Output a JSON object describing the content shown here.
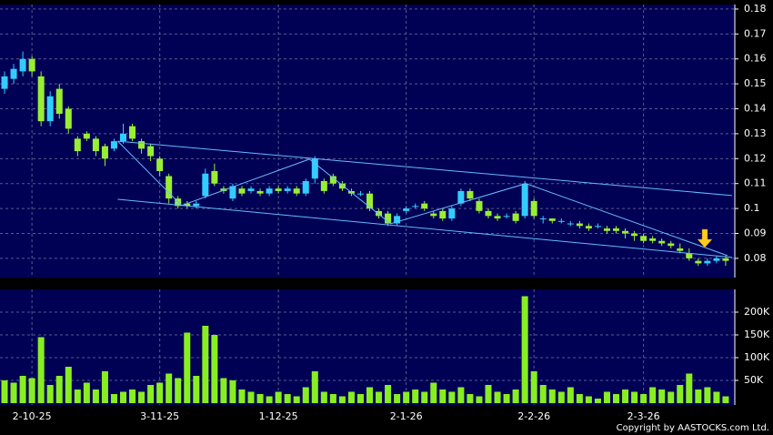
{
  "chart_data": {
    "type": "candlestick",
    "x": [
      0,
      1,
      2,
      3,
      4,
      5,
      6,
      7,
      8,
      9,
      10,
      11,
      12,
      13,
      14,
      15,
      16,
      17,
      18,
      19,
      20,
      21,
      22,
      23,
      24,
      25,
      26,
      27,
      28,
      29,
      30,
      31,
      32,
      33,
      34,
      35,
      36,
      37,
      38,
      39,
      40,
      41,
      42,
      43,
      44,
      45,
      46,
      47,
      48,
      49,
      50,
      51,
      52,
      53,
      54,
      55,
      56,
      57,
      58,
      59,
      60,
      61,
      62,
      63,
      64,
      65,
      66,
      67,
      68,
      69,
      70,
      71,
      72,
      73,
      74,
      75,
      76,
      77,
      78,
      79
    ],
    "xlim": [
      -0.5,
      80
    ],
    "xticks": [
      {
        "value": 3,
        "label": "2-10-25"
      },
      {
        "value": 17,
        "label": "3-11-25"
      },
      {
        "value": 30,
        "label": "1-12-25"
      },
      {
        "value": 44,
        "label": "2-1-26"
      },
      {
        "value": 58,
        "label": "2-2-26"
      },
      {
        "value": 70,
        "label": "2-3-26"
      }
    ],
    "open": [
      0.148,
      0.152,
      0.155,
      0.16,
      0.153,
      0.135,
      0.148,
      0.14,
      0.128,
      0.13,
      0.128,
      0.125,
      0.124,
      0.127,
      0.133,
      0.127,
      0.125,
      0.12,
      0.113,
      0.104,
      0.102,
      0.101,
      0.105,
      0.115,
      0.108,
      0.104,
      0.108,
      0.107,
      0.107,
      0.106,
      0.108,
      0.107,
      0.108,
      0.106,
      0.112,
      0.111,
      0.113,
      0.11,
      0.107,
      0.106,
      0.106,
      0.099,
      0.098,
      0.094,
      0.099,
      0.101,
      0.102,
      0.098,
      0.099,
      0.096,
      0.102,
      0.107,
      0.103,
      0.099,
      0.097,
      0.097,
      0.098,
      0.097,
      0.103,
      0.096,
      0.096,
      0.095,
      0.094,
      0.094,
      0.093,
      0.093,
      0.092,
      0.092,
      0.091,
      0.09,
      0.089,
      0.088,
      0.087,
      0.086,
      0.084,
      0.082,
      0.079,
      0.078,
      0.079,
      0.08
    ],
    "high": [
      0.155,
      0.158,
      0.163,
      0.161,
      0.155,
      0.147,
      0.15,
      0.141,
      0.129,
      0.131,
      0.129,
      0.126,
      0.128,
      0.134,
      0.134,
      0.128,
      0.126,
      0.121,
      0.114,
      0.105,
      0.103,
      0.103,
      0.116,
      0.118,
      0.109,
      0.11,
      0.109,
      0.109,
      0.108,
      0.109,
      0.109,
      0.109,
      0.109,
      0.112,
      0.121,
      0.112,
      0.114,
      0.111,
      0.108,
      0.107,
      0.107,
      0.1,
      0.099,
      0.098,
      0.101,
      0.102,
      0.103,
      0.099,
      0.1,
      0.101,
      0.108,
      0.108,
      0.104,
      0.1,
      0.098,
      0.098,
      0.099,
      0.111,
      0.104,
      0.097,
      0.096,
      0.096,
      0.095,
      0.095,
      0.094,
      0.094,
      0.093,
      0.093,
      0.092,
      0.091,
      0.09,
      0.089,
      0.088,
      0.087,
      0.086,
      0.084,
      0.08,
      0.08,
      0.081,
      0.081
    ],
    "low": [
      0.146,
      0.15,
      0.153,
      0.153,
      0.133,
      0.133,
      0.136,
      0.13,
      0.121,
      0.127,
      0.121,
      0.117,
      0.123,
      0.126,
      0.127,
      0.122,
      0.119,
      0.113,
      0.102,
      0.1,
      0.1,
      0.1,
      0.104,
      0.109,
      0.106,
      0.103,
      0.105,
      0.106,
      0.105,
      0.105,
      0.106,
      0.106,
      0.105,
      0.105,
      0.11,
      0.106,
      0.109,
      0.107,
      0.105,
      0.105,
      0.099,
      0.096,
      0.093,
      0.093,
      0.098,
      0.1,
      0.099,
      0.096,
      0.095,
      0.095,
      0.101,
      0.103,
      0.098,
      0.096,
      0.095,
      0.096,
      0.094,
      0.096,
      0.096,
      0.094,
      0.094,
      0.094,
      0.093,
      0.092,
      0.091,
      0.092,
      0.09,
      0.09,
      0.088,
      0.087,
      0.086,
      0.086,
      0.085,
      0.084,
      0.082,
      0.079,
      0.077,
      0.077,
      0.078,
      0.077
    ],
    "close": [
      0.153,
      0.156,
      0.16,
      0.155,
      0.135,
      0.145,
      0.138,
      0.132,
      0.123,
      0.128,
      0.123,
      0.12,
      0.127,
      0.13,
      0.128,
      0.124,
      0.121,
      0.115,
      0.104,
      0.101,
      0.101,
      0.102,
      0.114,
      0.11,
      0.107,
      0.109,
      0.106,
      0.108,
      0.106,
      0.108,
      0.107,
      0.108,
      0.106,
      0.111,
      0.12,
      0.107,
      0.11,
      0.108,
      0.106,
      0.106,
      0.1,
      0.097,
      0.094,
      0.097,
      0.1,
      0.101,
      0.1,
      0.097,
      0.096,
      0.1,
      0.107,
      0.104,
      0.099,
      0.097,
      0.096,
      0.097,
      0.095,
      0.11,
      0.097,
      0.096,
      0.095,
      0.095,
      0.094,
      0.093,
      0.092,
      0.093,
      0.091,
      0.091,
      0.09,
      0.089,
      0.087,
      0.087,
      0.086,
      0.085,
      0.083,
      0.08,
      0.078,
      0.079,
      0.08,
      0.079
    ],
    "up_color": "#33ccff",
    "down_color": "#99ee33",
    "ylim": [
      0.0723,
      0.1818
    ],
    "yticks": [
      0.08,
      0.09,
      0.1,
      0.11,
      0.12,
      0.13,
      0.14,
      0.15,
      0.16,
      0.17,
      0.18
    ],
    "trendlines": [
      {
        "x": [
          12.4,
          79.7
        ],
        "y": [
          0.127,
          0.1052
        ],
        "color": "#66bbff"
      },
      {
        "x": [
          12.4,
          79.7
        ],
        "y": [
          0.1037,
          0.0804
        ],
        "color": "#66bbff"
      },
      {
        "x": [
          12.4,
          19.4,
          33.4,
          42.3,
          57.1,
          79.2
        ],
        "y": [
          0.127,
          0.1012,
          0.1198,
          0.0939,
          0.11,
          0.0811
        ],
        "color": "#66bbff"
      }
    ],
    "volume": [
      50000,
      45000,
      60000,
      55000,
      145000,
      40000,
      60000,
      80000,
      30000,
      45000,
      30000,
      70000,
      20000,
      25000,
      30000,
      25000,
      40000,
      45000,
      65000,
      55000,
      155000,
      60000,
      170000,
      150000,
      55000,
      50000,
      30000,
      25000,
      20000,
      15000,
      25000,
      20000,
      15000,
      35000,
      70000,
      25000,
      20000,
      15000,
      25000,
      20000,
      35000,
      25000,
      40000,
      20000,
      25000,
      30000,
      25000,
      45000,
      30000,
      25000,
      35000,
      20000,
      15000,
      40000,
      25000,
      20000,
      30000,
      235000,
      70000,
      40000,
      30000,
      25000,
      35000,
      20000,
      15000,
      10000,
      25000,
      20000,
      30000,
      25000,
      20000,
      35000,
      30000,
      25000,
      40000,
      65000,
      30000,
      35000,
      25000,
      15000
    ],
    "volume_color": "#88ee22",
    "volume_ylim": [
      -4000,
      250000
    ],
    "volume_yticks": [
      {
        "value": 50000,
        "label": "50K"
      },
      {
        "value": 100000,
        "label": "100K"
      },
      {
        "value": 150000,
        "label": "150K"
      },
      {
        "value": 200000,
        "label": "200K"
      }
    ],
    "grid": true,
    "copyright": "Copyright by AASTOCKS.com Ltd."
  }
}
